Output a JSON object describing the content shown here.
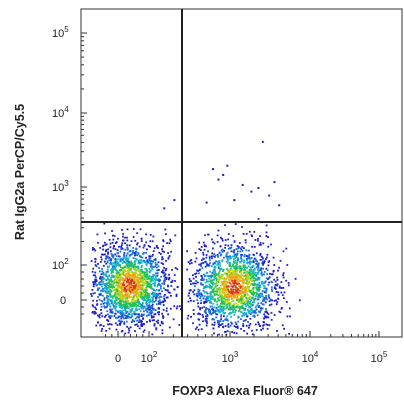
{
  "chart_data": {
    "type": "scatter",
    "style": "flow-cytometry-pseudocolor-density",
    "xlabel": "FOXP3 Alexa Fluor® 647",
    "ylabel": "Rat IgG2a PerCP/Cy5.5",
    "x_scale": "biexponential",
    "y_scale": "biexponential",
    "x_ticks": [
      {
        "value": 0,
        "label": "0"
      },
      {
        "value": 100,
        "label": "10",
        "exp": "2"
      },
      {
        "value": 1000,
        "label": "10",
        "exp": "3"
      },
      {
        "value": 10000,
        "label": "10",
        "exp": "4"
      },
      {
        "value": 100000,
        "label": "10",
        "exp": "5"
      }
    ],
    "y_ticks": [
      {
        "value": 0,
        "label": "0"
      },
      {
        "value": 100,
        "label": "10",
        "exp": "2"
      },
      {
        "value": 1000,
        "label": "10",
        "exp": "3"
      },
      {
        "value": 10000,
        "label": "10",
        "exp": "4"
      },
      {
        "value": 100000,
        "label": "10",
        "exp": "5"
      }
    ],
    "quadrant_gate": {
      "x": 250,
      "y": 350
    },
    "populations": [
      {
        "name": "FOXP3-negative cluster",
        "x_center": 35,
        "y_center": 45,
        "count": 1900
      },
      {
        "name": "FOXP3-positive cluster",
        "x_center": 1100,
        "y_center": 40,
        "count": 1700
      }
    ],
    "sparse_events": [
      [
        600,
        1800
      ],
      [
        800,
        1500
      ],
      [
        700,
        1300
      ],
      [
        900,
        2000
      ],
      [
        1400,
        1100
      ],
      [
        2500,
        4200
      ],
      [
        1800,
        900
      ],
      [
        3500,
        1200
      ],
      [
        1100,
        700
      ],
      [
        500,
        650
      ],
      [
        200,
        700
      ],
      [
        150,
        550
      ],
      [
        2200,
        1000
      ],
      [
        4000,
        600
      ],
      [
        3000,
        800
      ]
    ],
    "density_colors": [
      "#1d1dc9",
      "#1a6fe0",
      "#19b6c9",
      "#21c24a",
      "#b7d51a",
      "#f0a21b",
      "#d8361c"
    ]
  }
}
